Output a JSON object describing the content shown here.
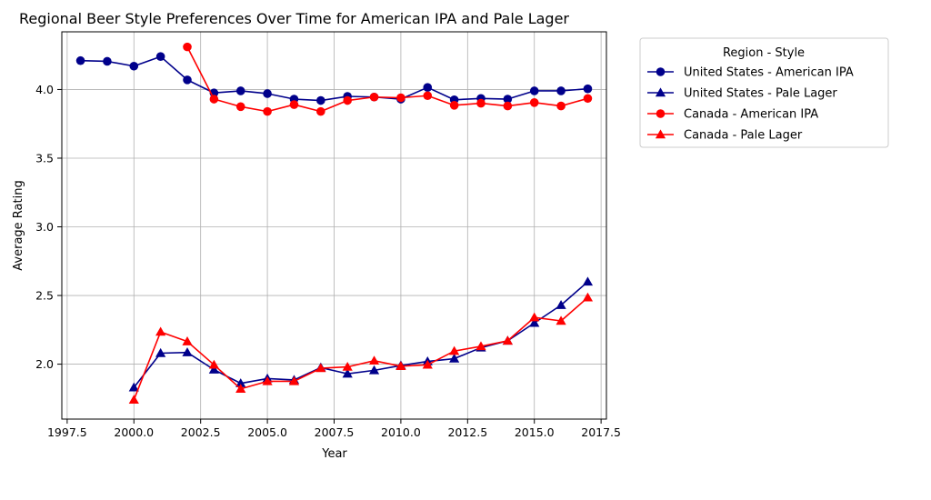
{
  "chart_data": {
    "type": "line",
    "title": "Regional Beer Style Preferences Over Time for American IPA and Pale Lager",
    "xlabel": "Year",
    "ylabel": "Average Rating",
    "xlim": [
      1997.3,
      2017.7
    ],
    "ylim": [
      1.6,
      4.42
    ],
    "xticks": [
      1997.5,
      2000.0,
      2002.5,
      2005.0,
      2007.5,
      2010.0,
      2012.5,
      2015.0,
      2017.5
    ],
    "xtick_labels": [
      "1997.5",
      "2000.0",
      "2002.5",
      "2005.0",
      "2007.5",
      "2010.0",
      "2012.5",
      "2015.0",
      "2017.5"
    ],
    "yticks": [
      2.0,
      2.5,
      3.0,
      3.5,
      4.0
    ],
    "ytick_labels": [
      "2.0",
      "2.5",
      "3.0",
      "3.5",
      "4.0"
    ],
    "grid": true,
    "legend": {
      "title": "Region - Style",
      "placement": "outside-upper-right"
    },
    "series": [
      {
        "name": "United States - American IPA",
        "color": "#00008b",
        "marker": "circle",
        "x": [
          1998,
          1999,
          2000,
          2001,
          2002,
          2003,
          2004,
          2005,
          2006,
          2007,
          2008,
          2009,
          2010,
          2011,
          2012,
          2013,
          2014,
          2015,
          2016,
          2017
        ],
        "y": [
          4.21,
          4.205,
          4.17,
          4.24,
          4.07,
          3.975,
          3.99,
          3.97,
          3.93,
          3.92,
          3.95,
          3.945,
          3.93,
          4.015,
          3.925,
          3.935,
          3.93,
          3.99,
          3.99,
          4.005
        ]
      },
      {
        "name": "United States - Pale Lager",
        "color": "#00008b",
        "marker": "triangle",
        "x": [
          2000,
          2001,
          2002,
          2003,
          2004,
          2005,
          2006,
          2007,
          2008,
          2009,
          2010,
          2011,
          2012,
          2013,
          2014,
          2015,
          2016,
          2017
        ],
        "y": [
          1.83,
          2.08,
          2.085,
          1.96,
          1.86,
          1.895,
          1.885,
          1.975,
          1.93,
          1.955,
          1.99,
          2.02,
          2.04,
          2.12,
          2.17,
          2.3,
          2.43,
          2.6
        ]
      },
      {
        "name": "Canada - American IPA",
        "color": "#ff0000",
        "marker": "circle",
        "x": [
          2002,
          2003,
          2004,
          2005,
          2006,
          2007,
          2008,
          2009,
          2010,
          2011,
          2012,
          2013,
          2014,
          2015,
          2016,
          2017
        ],
        "y": [
          4.31,
          3.93,
          3.875,
          3.84,
          3.89,
          3.84,
          3.92,
          3.945,
          3.94,
          3.955,
          3.885,
          3.9,
          3.88,
          3.905,
          3.88,
          3.935
        ]
      },
      {
        "name": "Canada - Pale Lager",
        "color": "#ff0000",
        "marker": "triangle",
        "x": [
          2000,
          2001,
          2002,
          2003,
          2004,
          2005,
          2006,
          2007,
          2008,
          2009,
          2010,
          2011,
          2012,
          2013,
          2014,
          2015,
          2016,
          2017
        ],
        "y": [
          1.74,
          2.235,
          2.165,
          1.995,
          1.82,
          1.875,
          1.875,
          1.97,
          1.98,
          2.025,
          1.985,
          1.995,
          2.095,
          2.13,
          2.17,
          2.34,
          2.315,
          2.485
        ]
      }
    ]
  }
}
